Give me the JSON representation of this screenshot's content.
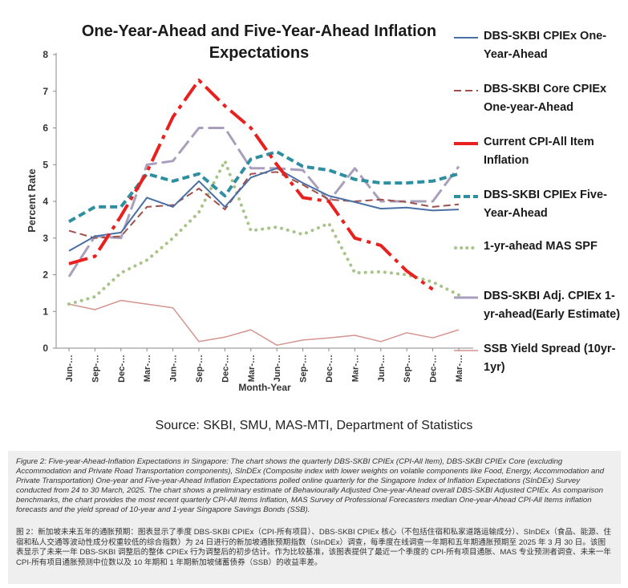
{
  "chart_data": {
    "type": "line",
    "title": "One-Year-Ahead and Five-Year-Ahead Inflation Expectations",
    "xlabel": "Month-Year",
    "ylabel": "Percent Rate",
    "ylim": [
      0,
      8
    ],
    "yticks": [
      "0",
      "1",
      "2",
      "3",
      "4",
      "5",
      "6",
      "7",
      "8"
    ],
    "grid": false,
    "legend_position": "right",
    "categories": [
      "Jun-…",
      "Sep-…",
      "Dec-…",
      "Mar-…",
      "Jun-…",
      "Sep-…",
      "Dec-…",
      "Mar-…",
      "Jun-…",
      "Sep-…",
      "Dec-…",
      "Mar-…",
      "Jun-…",
      "Sep-…",
      "Dec-…",
      "Mar-…"
    ],
    "series": [
      {
        "name": "DBS-SKBI CPIEx One-Year-Ahead",
        "color": "#4a6fa5",
        "style": "solid",
        "width": 2,
        "values": [
          2.65,
          3.05,
          3.15,
          4.1,
          3.85,
          4.55,
          3.85,
          4.65,
          4.9,
          4.5,
          4.15,
          3.98,
          3.8,
          3.83,
          3.75,
          3.78
        ]
      },
      {
        "name": "DBS-SKBI Core CPIEx One-year-Ahead",
        "color": "#a0504a",
        "style": "dash",
        "width": 2,
        "values": [
          3.2,
          3.0,
          3.05,
          3.85,
          3.9,
          4.35,
          3.78,
          4.75,
          4.8,
          4.45,
          4.05,
          4.0,
          4.05,
          3.98,
          3.85,
          3.92
        ]
      },
      {
        "name": "Current CPI-All Item Inflation",
        "color": "#e8201e",
        "style": "dashdot",
        "width": 4,
        "values": [
          2.3,
          2.5,
          3.6,
          4.8,
          6.3,
          7.3,
          6.6,
          6.0,
          5.0,
          4.1,
          4.0,
          3.0,
          2.8,
          2.1,
          1.6,
          null
        ]
      },
      {
        "name": "DBS-SKBI CPIEx Five-Year-Ahead",
        "color": "#2e8fa0",
        "style": "dash",
        "width": 4,
        "values": [
          3.45,
          3.85,
          3.85,
          4.75,
          4.55,
          4.75,
          4.15,
          5.15,
          5.35,
          4.95,
          4.85,
          4.6,
          4.5,
          4.5,
          4.55,
          4.75
        ]
      },
      {
        "name": "1-yr-ahead MAS SPF",
        "color": "#a9c48a",
        "style": "dot",
        "width": 4,
        "values": [
          1.2,
          1.4,
          2.05,
          2.4,
          3.0,
          3.7,
          5.1,
          3.2,
          3.3,
          3.1,
          3.4,
          2.05,
          2.08,
          2.0,
          1.8,
          1.45
        ]
      },
      {
        "name": "DBS-SKBI Adj. CPIEx 1-yr-ahead(Early Estimate)",
        "color": "#a99fbd",
        "style": "longdash",
        "width": 3,
        "values": [
          1.95,
          3.05,
          3.0,
          5.0,
          5.1,
          6.0,
          6.0,
          4.9,
          4.9,
          4.85,
          4.0,
          4.9,
          4.0,
          4.0,
          4.0,
          4.95
        ]
      },
      {
        "name": "SSB Yield Spread (10yr-1yr)",
        "color": "#d4948f",
        "style": "solid",
        "width": 1.5,
        "values": [
          1.2,
          1.05,
          1.3,
          1.2,
          1.1,
          0.18,
          0.3,
          0.5,
          0.08,
          0.22,
          0.28,
          0.35,
          0.18,
          0.42,
          0.28,
          0.5
        ]
      }
    ]
  },
  "legend": [
    "DBS-SKBI CPIEx One-Year-Ahead",
    "DBS-SKBI Core CPIEx One-year-Ahead",
    "Current CPI-All Item Inflation",
    "DBS-SKBI CPIEx Five-Year-Ahead",
    "1-yr-ahead MAS SPF",
    "DBS-SKBI Adj. CPIEx 1-yr-ahead(Early Estimate)",
    "SSB Yield Spread (10yr-1yr)"
  ],
  "source": "Source: SKBI, SMU, MAS-MTI, Department of Statistics",
  "caption_en": "Figure 2: Five-year-Ahead-Inflation Expectations in Singapore: The chart shows the quarterly DBS-SKBI CPIEx (CPI-All Item), DBS-SKBI CPIEx Core (excluding Accommodation and Private Road Transportation components), SInDEx (Composite index with lower weights on volatile components like Food, Energy, Accommodation and Private Transportation) One-year and Five-year-Ahead Inflation Expectations polled online quarterly for the Singapore Index of Inflation Expectations (SInDEx) Survey conducted from 24 to 30 March, 2025. The chart shows a preliminary estimate of Behaviourally Adjusted One-year-Ahead overall DBS-SKBI Adjusted CPIEx. As comparison benchmarks, the chart provides the most recent quarterly CPI-All Items Inflation, MAS Survey of Professional Forecasters median One-year-Ahead CPI-All Items inflation forecasts and the yield spread of 10-year and 1-year Singapore Savings Bonds (SSB).",
  "caption_zh": "图 2：新加坡未来五年的通胀预期：图表显示了季度 DBS-SKBI CPIEx（CPI-所有项目）、DBS-SKBI CPIEx 核心（不包括住宿和私家道路运输成分）、SInDEx（食品、能源、住宿和私人交通等波动性成分权重较低的综合指数）为 24 日进行的新加坡通胀预期指数（SInDEx）调查，每季度在线调查一年期和五年期通胀预期至 2025 年 3 月 30 日。该图表显示了未来一年 DBS-SKBI 调整后的整体 CPIEx 行为调整后的初步估计。作为比较基准，该图表提供了最近一个季度的 CPI-所有项目通胀、MAS 专业预测者调查、未来一年 CPI-所有项目通胀预测中位数以及 10 年期和 1 年期新加坡储蓄债券（SSB）的收益率差。"
}
